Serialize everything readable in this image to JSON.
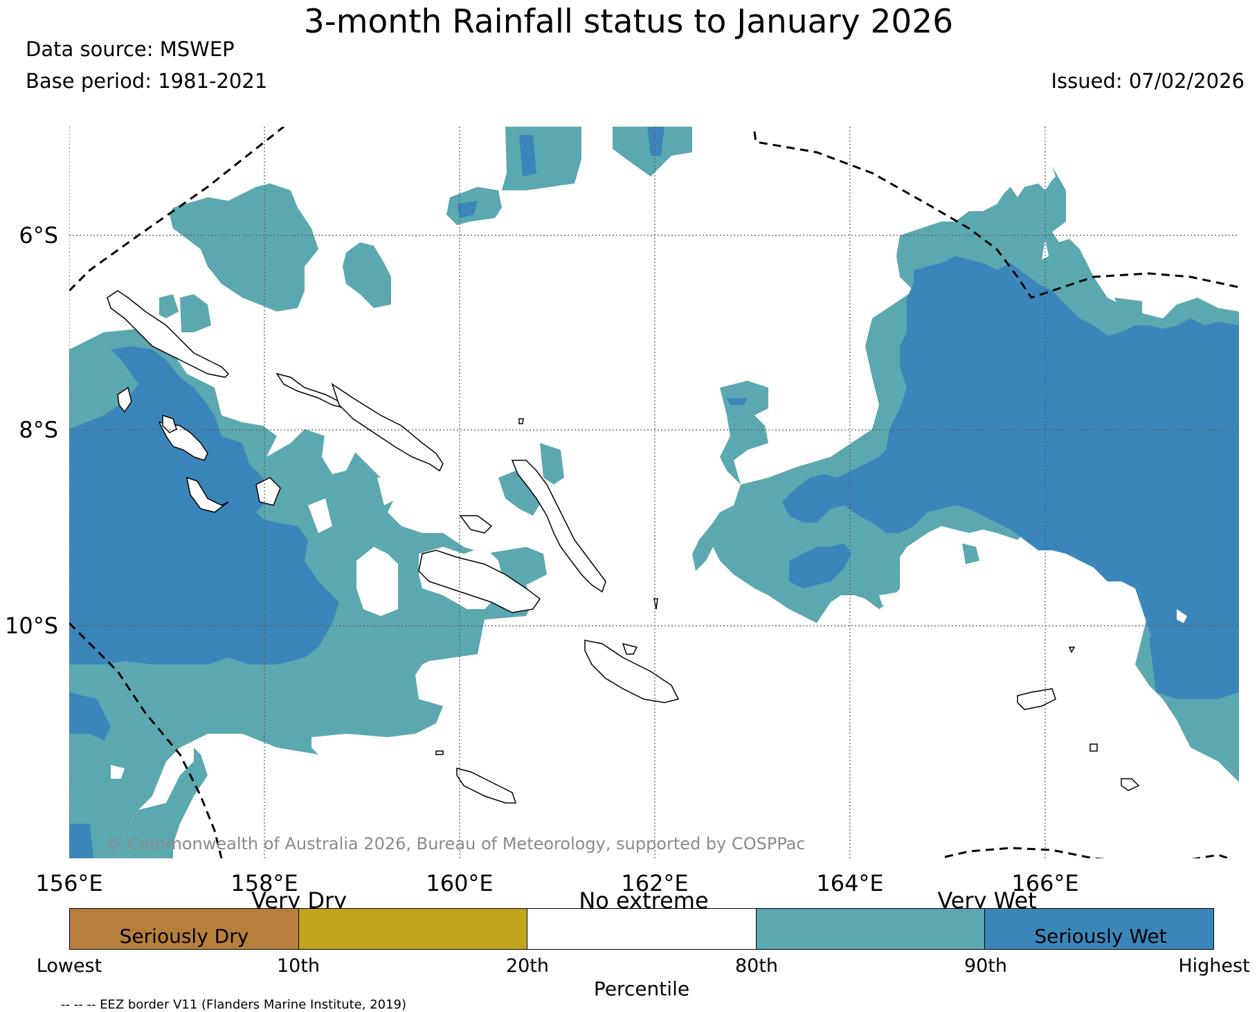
{
  "header": {
    "title": "3-month Rainfall status to January 2026",
    "data_source": "Data source: MSWEP",
    "base_period": "Base period: 1981-2021",
    "issued": "Issued: 07/02/2026"
  },
  "map": {
    "lon_ticks": [
      "156°E",
      "158°E",
      "160°E",
      "162°E",
      "164°E",
      "166°E"
    ],
    "lat_ticks": [
      "6°S",
      "8°S",
      "10°S"
    ],
    "copyright": "© Commonwealth of Australia 2026, Bureau of Meteorology, supported by COSPPac",
    "colors": {
      "very_wet": "#5ba8b0",
      "seriously_wet": "#3a86bb",
      "no_extreme": "#ffffff",
      "very_dry": "#c4a41d",
      "seriously_dry": "#b77f3b"
    }
  },
  "legend": {
    "top_labels": [
      "Very Dry",
      "No extreme",
      "Very Wet"
    ],
    "inbox_labels": [
      "Seriously Dry",
      "Seriously Wet"
    ],
    "ticks": [
      "Lowest",
      "10th",
      "20th",
      "80th",
      "90th",
      "Highest"
    ],
    "axis_label": "Percentile",
    "segments": [
      "#b77f3b",
      "#c4a41d",
      "#ffffff",
      "#5ba8b0",
      "#3a86bb"
    ]
  },
  "footnote": "-- -- -- EEZ border V11 (Flanders Marine Institute, 2019)"
}
